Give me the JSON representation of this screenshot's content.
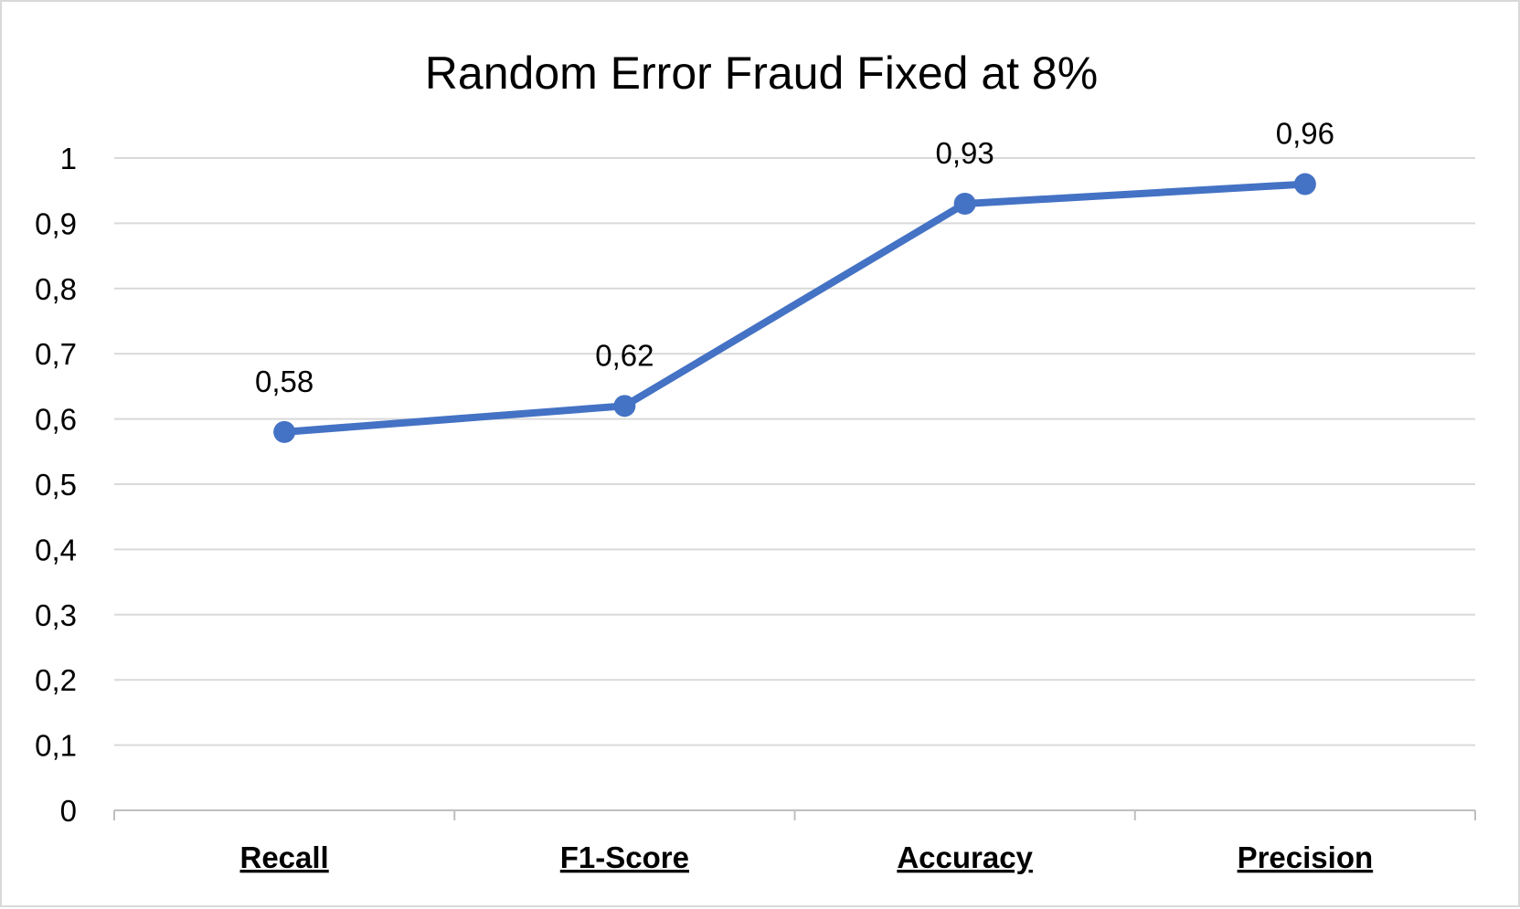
{
  "chart_data": {
    "type": "line",
    "title": "Random Error Fraud Fixed at 8%",
    "xlabel": "",
    "ylabel": "",
    "categories": [
      "Recall",
      "F1-Score",
      "Accuracy",
      "Precision"
    ],
    "series": [
      {
        "values": [
          0.58,
          0.62,
          0.93,
          0.96
        ],
        "data_labels": [
          "0,58",
          "0,62",
          "0,93",
          "0,96"
        ],
        "color": "#4472c4"
      }
    ],
    "ylim": [
      0,
      1
    ],
    "yticks": [
      0,
      0.1,
      0.2,
      0.3,
      0.4,
      0.5,
      0.6,
      0.7,
      0.8,
      0.9,
      1
    ],
    "ytick_labels": [
      "0",
      "0,1",
      "0,2",
      "0,3",
      "0,4",
      "0,5",
      "0,6",
      "0,7",
      "0,8",
      "0,9",
      "1"
    ],
    "grid": true,
    "legend": "none",
    "category_labels_bold_underlined": true,
    "colors": {
      "line": "#4472c4",
      "grid": "#d9d9d9",
      "axis": "#bfbfbf",
      "border": "#d9d9d9"
    }
  }
}
